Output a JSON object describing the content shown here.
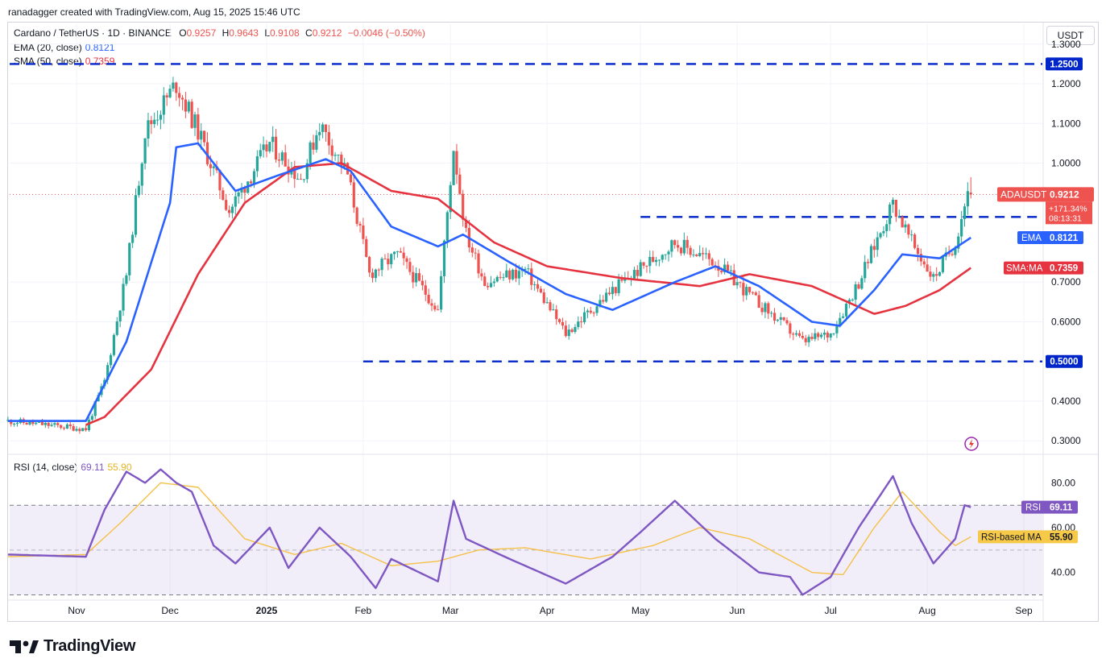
{
  "caption": "ranadagger created with TradingView.com, Aug 15, 2025 15:46 UTC",
  "currency": "USDT",
  "legend": {
    "symbol": "Cardano / TetherUS · 1D · BINANCE",
    "o_label": "O",
    "o": "0.9257",
    "h_label": "H",
    "h": "0.9643",
    "l_label": "L",
    "l": "0.9108",
    "c_label": "C",
    "c": "0.9212",
    "change": "−0.0046 (−0.50%)",
    "ema_label": "EMA (20, close)",
    "ema_value": "0.8121",
    "sma_label": "SMA (50, close)",
    "sma_value": "0.7359",
    "rsi_label": "RSI (14, close)",
    "rsi_value": "69.11",
    "rsi_ma_value": "55.90"
  },
  "colors": {
    "up": "#26a69a",
    "down": "#ef5350",
    "ema": "#2962ff",
    "sma": "#e53340",
    "level": "#0026c9",
    "rsi": "#7e57c2",
    "rsi_ma": "#f5c048",
    "axis_text": "#131722"
  },
  "tags": {
    "ticker": "ADAUSDT",
    "price": "0.9212",
    "change_pct": "+171.34%",
    "countdown": "08:13:31",
    "ema_tag": "EMA",
    "ema_val": "0.8121",
    "sma_tag": "SMA:MA",
    "sma_val": "0.7359",
    "rsi_tag": "RSI",
    "rsi_val": "69.11",
    "rsi_ma_tag": "RSI-based MA",
    "rsi_ma_val": "55.90"
  },
  "logo_text": "TradingView",
  "chart_data": {
    "type": "candlestick",
    "title": "Cardano / TetherUS · 1D · BINANCE",
    "y_axis": {
      "ticks": [
        "1.3000",
        "1.2000",
        "1.1000",
        "1.0000",
        "0.7000",
        "0.6000",
        "0.5000",
        "0.4000",
        "0.3000"
      ],
      "range": [
        0.27,
        1.33
      ]
    },
    "x_axis": {
      "ticks": [
        "Nov",
        "Dec",
        "2025",
        "Feb",
        "Mar",
        "Apr",
        "May",
        "Jun",
        "Jul",
        "Aug",
        "Sep"
      ]
    },
    "horizontal_levels": [
      {
        "value": 1.25,
        "label": "1.2500"
      },
      {
        "value": 0.8643,
        "label": "0.8643"
      },
      {
        "value": 0.5,
        "label": "0.5000"
      }
    ],
    "last_price": 0.9212,
    "price_keypoints": [
      {
        "date": "Oct 10",
        "close": 0.35
      },
      {
        "date": "Nov 4",
        "close": 0.33
      },
      {
        "date": "Nov 10",
        "close": 0.45
      },
      {
        "date": "Nov 17",
        "close": 0.72
      },
      {
        "date": "Nov 23",
        "close": 1.08
      },
      {
        "date": "Dec 3",
        "close": 1.2
      },
      {
        "date": "Dec 10",
        "close": 1.08
      },
      {
        "date": "Dec 20",
        "close": 0.88
      },
      {
        "date": "Jan 2",
        "close": 1.05
      },
      {
        "date": "Jan 12",
        "close": 0.96
      },
      {
        "date": "Jan 18",
        "close": 1.1
      },
      {
        "date": "Jan 27",
        "close": 0.97
      },
      {
        "date": "Feb 3",
        "close": 0.72
      },
      {
        "date": "Feb 12",
        "close": 0.77
      },
      {
        "date": "Feb 25",
        "close": 0.63
      },
      {
        "date": "Mar 2",
        "close": 1.04
      },
      {
        "date": "Mar 6",
        "close": 0.82
      },
      {
        "date": "Mar 12",
        "close": 0.7
      },
      {
        "date": "Mar 25",
        "close": 0.73
      },
      {
        "date": "Apr 7",
        "close": 0.57
      },
      {
        "date": "Apr 22",
        "close": 0.68
      },
      {
        "date": "May 12",
        "close": 0.8
      },
      {
        "date": "May 25",
        "close": 0.75
      },
      {
        "date": "Jun 6",
        "close": 0.66
      },
      {
        "date": "Jun 22",
        "close": 0.55
      },
      {
        "date": "Jul 1",
        "close": 0.57
      },
      {
        "date": "Jul 10",
        "close": 0.7
      },
      {
        "date": "Jul 21",
        "close": 0.9
      },
      {
        "date": "Jul 27",
        "close": 0.8
      },
      {
        "date": "Aug 3",
        "close": 0.71
      },
      {
        "date": "Aug 10",
        "close": 0.8
      },
      {
        "date": "Aug 14",
        "close": 0.93
      },
      {
        "date": "Aug 15",
        "close": 0.9212
      }
    ],
    "ema20_keypoints": [
      {
        "date": "Oct 10",
        "value": 0.35
      },
      {
        "date": "Nov 4",
        "value": 0.35
      },
      {
        "date": "Nov 17",
        "value": 0.55
      },
      {
        "date": "Dec 1",
        "value": 0.9
      },
      {
        "date": "Dec 3",
        "value": 1.04
      },
      {
        "date": "Dec 10",
        "value": 1.05
      },
      {
        "date": "Dec 22",
        "value": 0.93
      },
      {
        "date": "Jan 5",
        "value": 0.97
      },
      {
        "date": "Jan 20",
        "value": 1.01
      },
      {
        "date": "Jan 28",
        "value": 0.98
      },
      {
        "date": "Feb 10",
        "value": 0.84
      },
      {
        "date": "Feb 25",
        "value": 0.79
      },
      {
        "date": "Mar 5",
        "value": 0.82
      },
      {
        "date": "Mar 20",
        "value": 0.75
      },
      {
        "date": "Apr 7",
        "value": 0.67
      },
      {
        "date": "Apr 22",
        "value": 0.63
      },
      {
        "date": "May 12",
        "value": 0.7
      },
      {
        "date": "May 25",
        "value": 0.74
      },
      {
        "date": "Jun 8",
        "value": 0.69
      },
      {
        "date": "Jun 25",
        "value": 0.6
      },
      {
        "date": "Jul 4",
        "value": 0.59
      },
      {
        "date": "Jul 15",
        "value": 0.68
      },
      {
        "date": "Jul 24",
        "value": 0.77
      },
      {
        "date": "Aug 5",
        "value": 0.76
      },
      {
        "date": "Aug 15",
        "value": 0.8121
      }
    ],
    "sma50_keypoints": [
      {
        "date": "Nov 4",
        "value": 0.34
      },
      {
        "date": "Nov 10",
        "value": 0.36
      },
      {
        "date": "Nov 25",
        "value": 0.48
      },
      {
        "date": "Dec 10",
        "value": 0.72
      },
      {
        "date": "Dec 25",
        "value": 0.9
      },
      {
        "date": "Jan 10",
        "value": 0.99
      },
      {
        "date": "Jan 25",
        "value": 1.0
      },
      {
        "date": "Feb 10",
        "value": 0.93
      },
      {
        "date": "Feb 25",
        "value": 0.91
      },
      {
        "date": "Mar 15",
        "value": 0.8
      },
      {
        "date": "Apr 1",
        "value": 0.74
      },
      {
        "date": "Apr 25",
        "value": 0.71
      },
      {
        "date": "May 20",
        "value": 0.69
      },
      {
        "date": "Jun 5",
        "value": 0.72
      },
      {
        "date": "Jun 25",
        "value": 0.69
      },
      {
        "date": "Jul 15",
        "value": 0.62
      },
      {
        "date": "Jul 25",
        "value": 0.64
      },
      {
        "date": "Aug 5",
        "value": 0.68
      },
      {
        "date": "Aug 15",
        "value": 0.7359
      }
    ],
    "rsi": {
      "name": "RSI (14, close)",
      "ticks": [
        "80.00",
        "60.00",
        "40.00"
      ],
      "range": [
        28,
        92
      ],
      "band": [
        30,
        70
      ],
      "last": 69.11,
      "ma_last": 55.9,
      "rsi_keypoints": [
        {
          "date": "Oct 10",
          "value": 48
        },
        {
          "date": "Nov 4",
          "value": 47
        },
        {
          "date": "Nov 10",
          "value": 68
        },
        {
          "date": "Nov 17",
          "value": 85
        },
        {
          "date": "Nov 23",
          "value": 80
        },
        {
          "date": "Nov 28",
          "value": 86
        },
        {
          "date": "Dec 3",
          "value": 80
        },
        {
          "date": "Dec 8",
          "value": 76
        },
        {
          "date": "Dec 15",
          "value": 52
        },
        {
          "date": "Dec 22",
          "value": 44
        },
        {
          "date": "Jan 2",
          "value": 60
        },
        {
          "date": "Jan 8",
          "value": 42
        },
        {
          "date": "Jan 18",
          "value": 60
        },
        {
          "date": "Jan 28",
          "value": 47
        },
        {
          "date": "Feb 5",
          "value": 33
        },
        {
          "date": "Feb 10",
          "value": 46
        },
        {
          "date": "Feb 25",
          "value": 36
        },
        {
          "date": "Mar 2",
          "value": 72
        },
        {
          "date": "Mar 6",
          "value": 55
        },
        {
          "date": "Mar 20",
          "value": 46
        },
        {
          "date": "Apr 7",
          "value": 35
        },
        {
          "date": "Apr 22",
          "value": 47
        },
        {
          "date": "May 1",
          "value": 58
        },
        {
          "date": "May 12",
          "value": 72
        },
        {
          "date": "May 25",
          "value": 55
        },
        {
          "date": "Jun 8",
          "value": 40
        },
        {
          "date": "Jun 18",
          "value": 38
        },
        {
          "date": "Jun 22",
          "value": 30
        },
        {
          "date": "Jul 1",
          "value": 38
        },
        {
          "date": "Jul 10",
          "value": 60
        },
        {
          "date": "Jul 21",
          "value": 83
        },
        {
          "date": "Jul 27",
          "value": 62
        },
        {
          "date": "Aug 3",
          "value": 44
        },
        {
          "date": "Aug 10",
          "value": 55
        },
        {
          "date": "Aug 13",
          "value": 70
        },
        {
          "date": "Aug 15",
          "value": 69.11
        }
      ],
      "rsi_ma_keypoints": [
        {
          "date": "Oct 10",
          "value": 47
        },
        {
          "date": "Nov 4",
          "value": 48
        },
        {
          "date": "Nov 15",
          "value": 62
        },
        {
          "date": "Nov 28",
          "value": 80
        },
        {
          "date": "Dec 10",
          "value": 78
        },
        {
          "date": "Dec 25",
          "value": 55
        },
        {
          "date": "Jan 10",
          "value": 48
        },
        {
          "date": "Jan 25",
          "value": 53
        },
        {
          "date": "Feb 10",
          "value": 43
        },
        {
          "date": "Feb 25",
          "value": 45
        },
        {
          "date": "Mar 10",
          "value": 50
        },
        {
          "date": "Mar 25",
          "value": 51
        },
        {
          "date": "Apr 15",
          "value": 46
        },
        {
          "date": "May 5",
          "value": 52
        },
        {
          "date": "May 20",
          "value": 60
        },
        {
          "date": "Jun 5",
          "value": 55
        },
        {
          "date": "Jun 25",
          "value": 40
        },
        {
          "date": "Jul 5",
          "value": 39
        },
        {
          "date": "Jul 15",
          "value": 60
        },
        {
          "date": "Jul 24",
          "value": 76
        },
        {
          "date": "Aug 5",
          "value": 58
        },
        {
          "date": "Aug 10",
          "value": 52
        },
        {
          "date": "Aug 15",
          "value": 55.9
        }
      ]
    }
  }
}
